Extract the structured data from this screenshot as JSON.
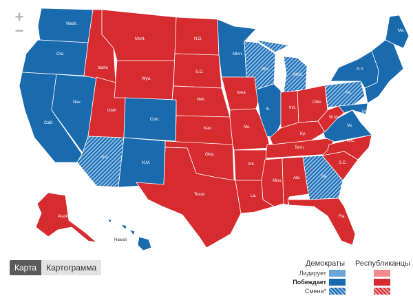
{
  "zoom": {
    "in_label": "+",
    "out_label": "−"
  },
  "view_tabs": {
    "map_label": "Карта",
    "cartogram_label": "Картограмма"
  },
  "legend": {
    "democrats_title": "Демократы",
    "republicans_title": "Республиканцы",
    "leading_label": "Лидирует",
    "winning_label": "Побеждает",
    "flip_label": "Смена*"
  },
  "colors": {
    "dem_win": "#1a6aae",
    "dem_lead": "#6ea5d8",
    "rep_win": "#d62b2f",
    "rep_lead": "#f28a8e",
    "border": "#ffffff"
  },
  "inset_label": "Hawaii",
  "states": {
    "WA": {
      "label": "Wash.",
      "status": "dem_win"
    },
    "OR": {
      "label": "Ore.",
      "status": "dem_win"
    },
    "CA": {
      "label": "Calif.",
      "status": "dem_win"
    },
    "NV": {
      "label": "Nev.",
      "status": "dem_win"
    },
    "ID": {
      "label": "Idaho",
      "status": "rep_win"
    },
    "MT": {
      "label": "Mont.",
      "status": "rep_win"
    },
    "WY": {
      "label": "Wyo.",
      "status": "rep_win"
    },
    "UT": {
      "label": "Utah",
      "status": "rep_win"
    },
    "AZ": {
      "label": "Ariz.",
      "status": "dem_flip"
    },
    "CO": {
      "label": "Colo.",
      "status": "dem_win"
    },
    "NM": {
      "label": "N.M.",
      "status": "dem_win"
    },
    "ND": {
      "label": "N.D.",
      "status": "rep_win"
    },
    "SD": {
      "label": "S.D.",
      "status": "rep_win"
    },
    "NE": {
      "label": "Neb.",
      "status": "rep_win"
    },
    "KS": {
      "label": "Kan.",
      "status": "rep_win"
    },
    "OK": {
      "label": "Okla.",
      "status": "rep_win"
    },
    "TX": {
      "label": "Texas",
      "status": "rep_win"
    },
    "MN": {
      "label": "Minn.",
      "status": "dem_win"
    },
    "IA": {
      "label": "Iowa",
      "status": "rep_win"
    },
    "MO": {
      "label": "Mo.",
      "status": "rep_win"
    },
    "AR": {
      "label": "Ark.",
      "status": "rep_win"
    },
    "LA": {
      "label": "La.",
      "status": "rep_win"
    },
    "WI": {
      "label": "Wis.",
      "status": "dem_flip"
    },
    "IL": {
      "label": "Ill.",
      "status": "dem_win"
    },
    "MI": {
      "label": "Mich.",
      "status": "dem_flip"
    },
    "IN": {
      "label": "Ind.",
      "status": "rep_win"
    },
    "OH": {
      "label": "Ohio",
      "status": "rep_win"
    },
    "KY": {
      "label": "Ky.",
      "status": "rep_win"
    },
    "TN": {
      "label": "Tenn.",
      "status": "rep_win"
    },
    "MS": {
      "label": "Miss.",
      "status": "rep_win"
    },
    "AL": {
      "label": "Ala.",
      "status": "rep_win"
    },
    "GA": {
      "label": "Ga.",
      "status": "dem_flip"
    },
    "FL": {
      "label": "Fla.",
      "status": "rep_win"
    },
    "SC": {
      "label": "S.C.",
      "status": "rep_win"
    },
    "NC": {
      "label": "N.C.",
      "status": "rep_win"
    },
    "VA": {
      "label": "Va.",
      "status": "dem_win"
    },
    "WV": {
      "label": "W.Va.",
      "status": "rep_win"
    },
    "PA": {
      "label": "Pa.",
      "status": "dem_flip"
    },
    "NY": {
      "label": "N.Y.",
      "status": "dem_win"
    },
    "ME": {
      "label": "Me.",
      "status": "dem_win"
    },
    "NE_STATES": {
      "label": "",
      "status": "dem_win"
    },
    "MD": {
      "label": "Md.",
      "status": "dem_win"
    },
    "AK": {
      "label": "Alaska",
      "status": "rep_win"
    },
    "HI": {
      "label": "",
      "status": "dem_win"
    }
  }
}
